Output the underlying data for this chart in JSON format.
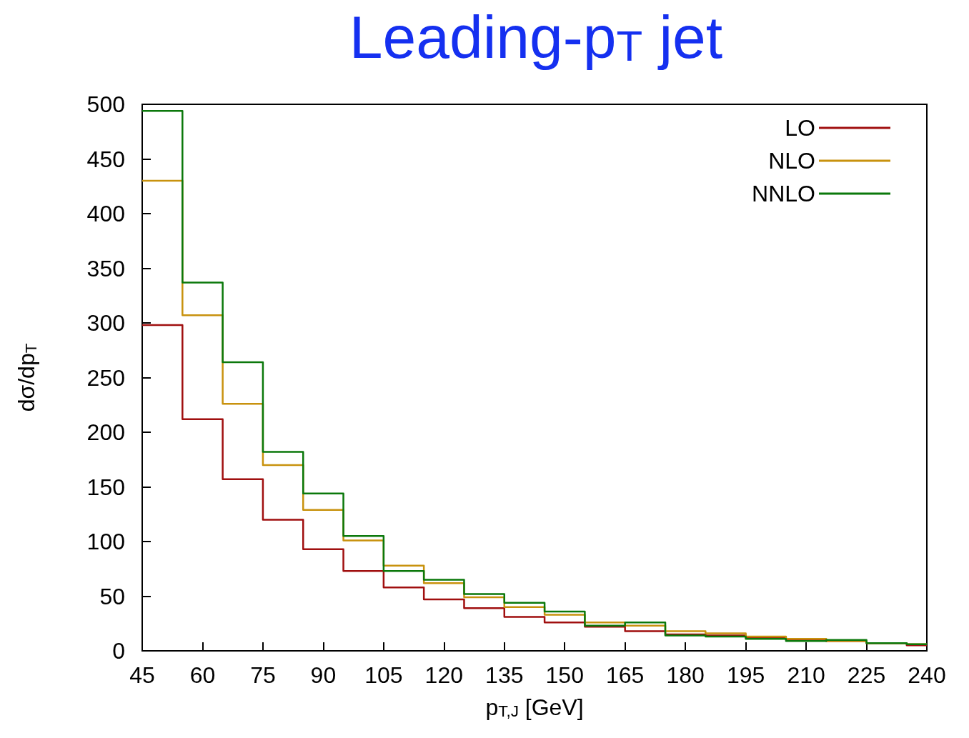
{
  "chart_data": {
    "type": "histogram",
    "title": "Leading-p$_{T}$ jet",
    "xlabel": "p$_{T,J}$ [GeV]",
    "ylabel": "dσ/dp$_{T}$",
    "bins": [
      45,
      55,
      65,
      75,
      85,
      95,
      105,
      115,
      125,
      135,
      145,
      155,
      165,
      175,
      185,
      195,
      205,
      215,
      225,
      235,
      240
    ],
    "series": [
      {
        "name": "LO",
        "color": "#a00f0f",
        "values": [
          298,
          212,
          157,
          120,
          93,
          73,
          58,
          47,
          39,
          31,
          26,
          22,
          18,
          15,
          14,
          12,
          10,
          9,
          7,
          5
        ]
      },
      {
        "name": "NLO",
        "color": "#c8920e",
        "values": [
          430,
          307,
          226,
          170,
          129,
          101,
          78,
          62,
          49,
          40,
          33,
          26,
          23,
          18,
          16,
          13,
          11,
          9,
          7,
          6
        ]
      },
      {
        "name": "NNLO",
        "color": "#0b780b",
        "values": [
          494,
          337,
          264,
          182,
          144,
          105,
          73,
          65,
          52,
          44,
          36,
          23,
          26,
          14,
          13,
          11,
          9,
          10,
          7,
          6
        ]
      }
    ],
    "xlim": [
      45,
      240
    ],
    "xticks": [
      45,
      60,
      75,
      90,
      105,
      120,
      135,
      150,
      165,
      180,
      195,
      210,
      225,
      240
    ],
    "ylim": [
      0,
      500
    ],
    "yticks": [
      0,
      50,
      100,
      150,
      200,
      250,
      300,
      350,
      400,
      450,
      500
    ],
    "grid": false,
    "legend": "top right"
  }
}
